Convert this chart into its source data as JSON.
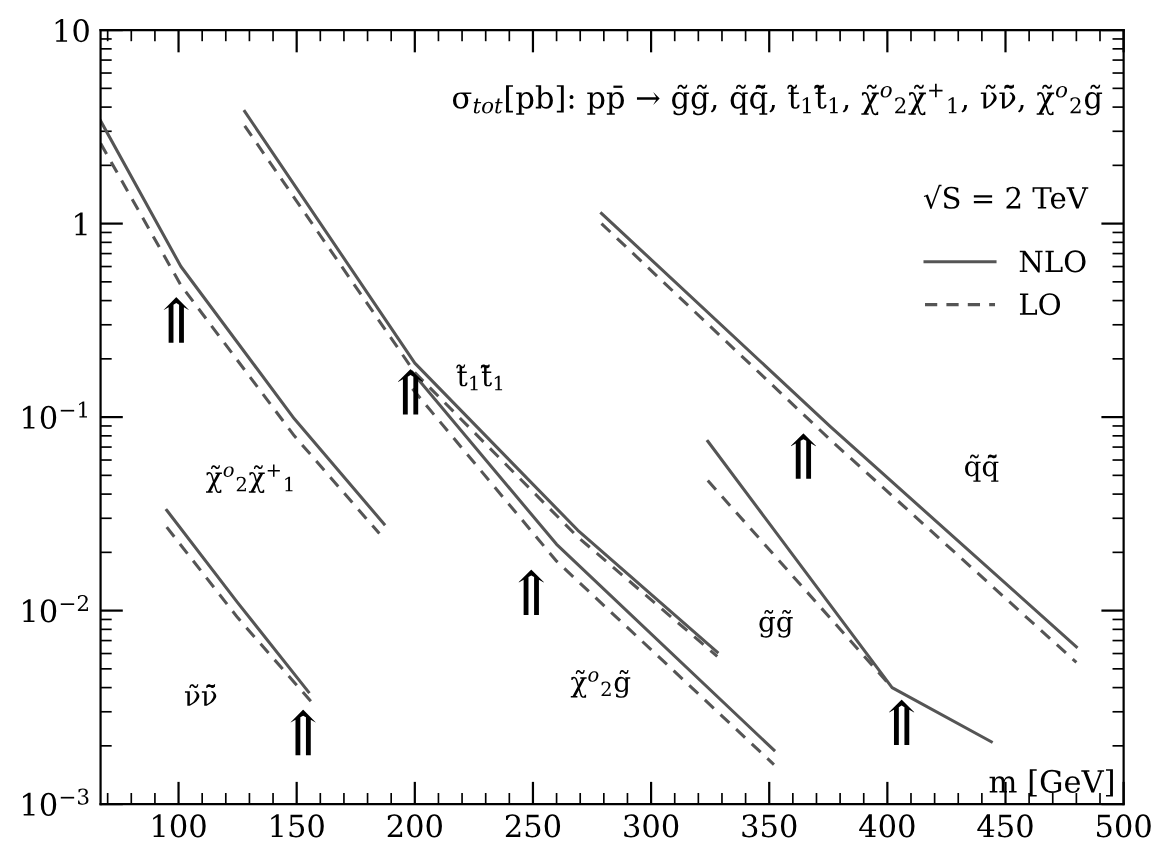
{
  "chart_data": {
    "type": "line",
    "title": "σ$_{tot}$[pb]: pp̄ → g̃g̃, q̃q̃̄, t̃$_{1}$t̃̄$_{1}$, χ̃$^{o}$$_{2}$χ̃$^{+}$$_{1}$, ν̃ν̃̄, χ̃$^{o}$$_{2}$g̃",
    "xlabel": "m [GeV]",
    "log": "y",
    "grid": false,
    "legend": "top right",
    "marker": "none",
    "xlim": [
      67,
      500
    ],
    "xticks": [
      100,
      150,
      200,
      250,
      300,
      350,
      400,
      450,
      500
    ],
    "ylim": [
      0.001,
      10
    ],
    "yticks": [
      {
        "value": 0.001,
        "label": "10$^{−3}$"
      },
      {
        "value": 0.01,
        "label": "10$^{−2}$"
      },
      {
        "value": 0.1,
        "label": "10$^{−1}$"
      },
      1,
      10
    ],
    "series": [
      {
        "name": "NLO",
        "color": "#555555",
        "line_style": "solid",
        "x": [
          67,
          101,
          149,
          187
        ],
        "values": [
          3.4,
          0.6,
          0.098,
          0.028
        ]
      },
      {
        "name": "LO",
        "color": "#555555",
        "line_style": "dashed",
        "x": [
          67,
          101,
          149,
          185
        ],
        "values": [
          2.6,
          0.48,
          0.08,
          0.025
        ]
      },
      {
        "color": "#555555",
        "line_style": "solid",
        "x": [
          95,
          125,
          155
        ],
        "values": [
          0.033,
          0.011,
          0.0038
        ]
      },
      {
        "color": "#555555",
        "line_style": "dashed",
        "x": [
          95,
          125,
          156
        ],
        "values": [
          0.027,
          0.0092,
          0.0034
        ]
      },
      {
        "color": "#555555",
        "line_style": "solid",
        "x": [
          128,
          200,
          269,
          328
        ],
        "values": [
          3.8,
          0.19,
          0.026,
          0.0061
        ]
      },
      {
        "color": "#555555",
        "line_style": "dashed",
        "x": [
          128,
          200,
          269,
          328
        ],
        "values": [
          3.2,
          0.17,
          0.024,
          0.0058
        ]
      },
      {
        "color": "#555555",
        "line_style": "solid",
        "x": [
          199,
          260,
          352
        ],
        "values": [
          0.17,
          0.022,
          0.0019
        ]
      },
      {
        "color": "#555555",
        "line_style": "dashed",
        "x": [
          199,
          260,
          352
        ],
        "values": [
          0.14,
          0.018,
          0.0016
        ]
      },
      {
        "color": "#555555",
        "line_style": "solid",
        "x": [
          279,
          376,
          480
        ],
        "values": [
          1.13,
          0.089,
          0.0065
        ]
      },
      {
        "color": "#555555",
        "line_style": "dashed",
        "x": [
          279,
          376,
          480
        ],
        "values": [
          1.0,
          0.076,
          0.0054
        ]
      },
      {
        "color": "#555555",
        "line_style": "solid",
        "x": [
          324,
          402,
          444
        ],
        "values": [
          0.075,
          0.004,
          0.0021
        ]
      },
      {
        "color": "#555555",
        "line_style": "dashed",
        "x": [
          324,
          402
        ],
        "values": [
          0.047,
          0.004
        ]
      }
    ],
    "annotations": [
      "√S = 2 TeV",
      "χ̃$^{o}$$_{2}$χ̃$^{+}$$_{1}$",
      "ν̃ν̃̄",
      "t̃$_{1}$t̃̄$_{1}$",
      "χ̃$^{o}$$_{2}$g̃",
      "g̃g̃",
      "q̃q̃̄",
      "⇑",
      "⇑",
      "⇑",
      "⇑",
      "⇑",
      "⇑"
    ]
  }
}
